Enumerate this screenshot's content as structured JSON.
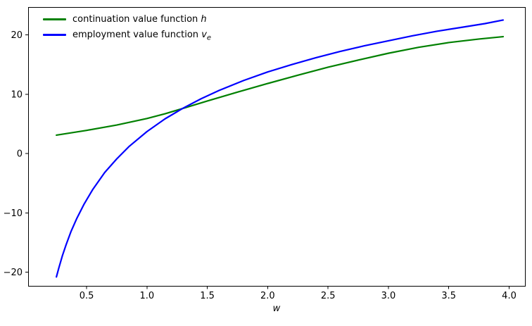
{
  "figure": {
    "background": "#ffffff",
    "frame_color": "#000000",
    "text_color": "#000000"
  },
  "legend": {
    "position": "upper-left",
    "items": [
      {
        "text": "continuation value function ",
        "math": "h",
        "sub": "",
        "color": "#008000"
      },
      {
        "text": "employment value function ",
        "math": "v",
        "sub": "e",
        "color": "#0000ff"
      }
    ]
  },
  "chart_data": {
    "type": "line",
    "title": "",
    "xlabel": "w",
    "ylabel": "",
    "grid": false,
    "xlim": [
      0.016,
      4.131
    ],
    "ylim": [
      -22.31,
      24.69
    ],
    "x_ticks": [
      0.5,
      1.0,
      1.5,
      2.0,
      2.5,
      3.0,
      3.5,
      4.0
    ],
    "x_tick_labels": [
      "0.5",
      "1.0",
      "1.5",
      "2.0",
      "2.5",
      "3.0",
      "3.5",
      "4.0"
    ],
    "y_ticks": [
      20,
      10,
      0,
      -10,
      -20
    ],
    "y_tick_labels": [
      "20",
      "10",
      "0",
      "−10",
      "−20"
    ],
    "series": [
      {
        "name": "continuation value function h",
        "color": "#008000",
        "line_width": 2.2,
        "x": [
          0.25,
          0.5,
          0.75,
          1.0,
          1.15,
          1.33,
          1.5,
          1.75,
          2.0,
          2.25,
          2.5,
          2.75,
          3.0,
          3.25,
          3.5,
          3.75,
          3.95
        ],
        "y": [
          3.1,
          3.9,
          4.8,
          5.9,
          6.7,
          7.8,
          8.85,
          10.35,
          11.8,
          13.2,
          14.55,
          15.75,
          16.9,
          17.9,
          18.7,
          19.3,
          19.7
        ]
      },
      {
        "name": "employment value function v_e",
        "color": "#0000ff",
        "line_width": 2.2,
        "x": [
          0.25,
          0.27,
          0.3,
          0.33,
          0.37,
          0.42,
          0.48,
          0.55,
          0.65,
          0.75,
          0.85,
          1.0,
          1.15,
          1.3,
          1.45,
          1.6,
          1.8,
          2.0,
          2.2,
          2.4,
          2.6,
          2.8,
          3.0,
          3.2,
          3.4,
          3.6,
          3.8,
          3.95
        ],
        "y": [
          -20.8,
          -19.3,
          -17.2,
          -15.4,
          -13.2,
          -10.9,
          -8.5,
          -6.1,
          -3.2,
          -0.9,
          1.15,
          3.7,
          5.85,
          7.65,
          9.25,
          10.65,
          12.3,
          13.75,
          15.0,
          16.15,
          17.2,
          18.15,
          19.0,
          19.85,
          20.6,
          21.25,
          21.9,
          22.5
        ]
      }
    ]
  }
}
